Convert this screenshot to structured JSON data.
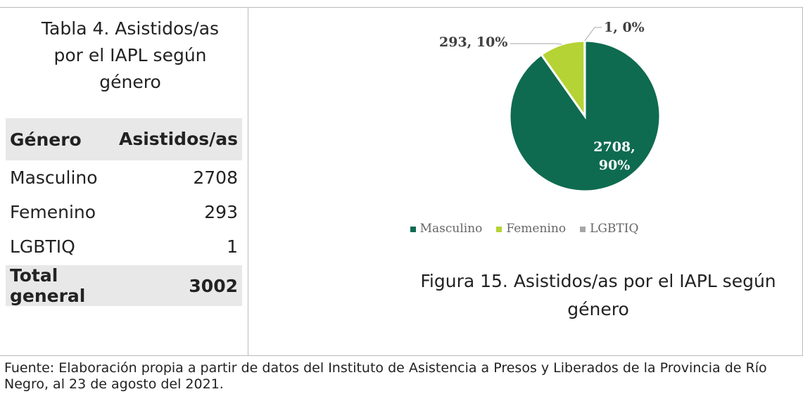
{
  "table": {
    "title": "Tabla 4. Asistidos/as por el IAPL según género",
    "header": [
      "Género",
      "Asistidos/as"
    ],
    "rows": [
      [
        "Masculino",
        2708
      ],
      [
        "Femenino",
        293
      ],
      [
        "LGBTIQ",
        1
      ]
    ],
    "total": [
      "Total general",
      3002
    ]
  },
  "chart_data": {
    "type": "pie",
    "categories": [
      "Masculino",
      "Femenino",
      "LGBTIQ"
    ],
    "values": [
      2708,
      293,
      1
    ],
    "value_labels": [
      "2708, 90%",
      "293, 10%",
      "1, 0%"
    ],
    "colors": [
      "#0e6b50",
      "#b5d334",
      "#a6a6a6"
    ],
    "legend": "bottom"
  },
  "caption": "Figura 15. Asistidos/as por el IAPL según género",
  "source": "Fuente: Elaboración propia a partir de datos del Instituto de Asistencia a Presos y Liberados de la Provincia de Río Negro, al 23 de agosto del 2021."
}
